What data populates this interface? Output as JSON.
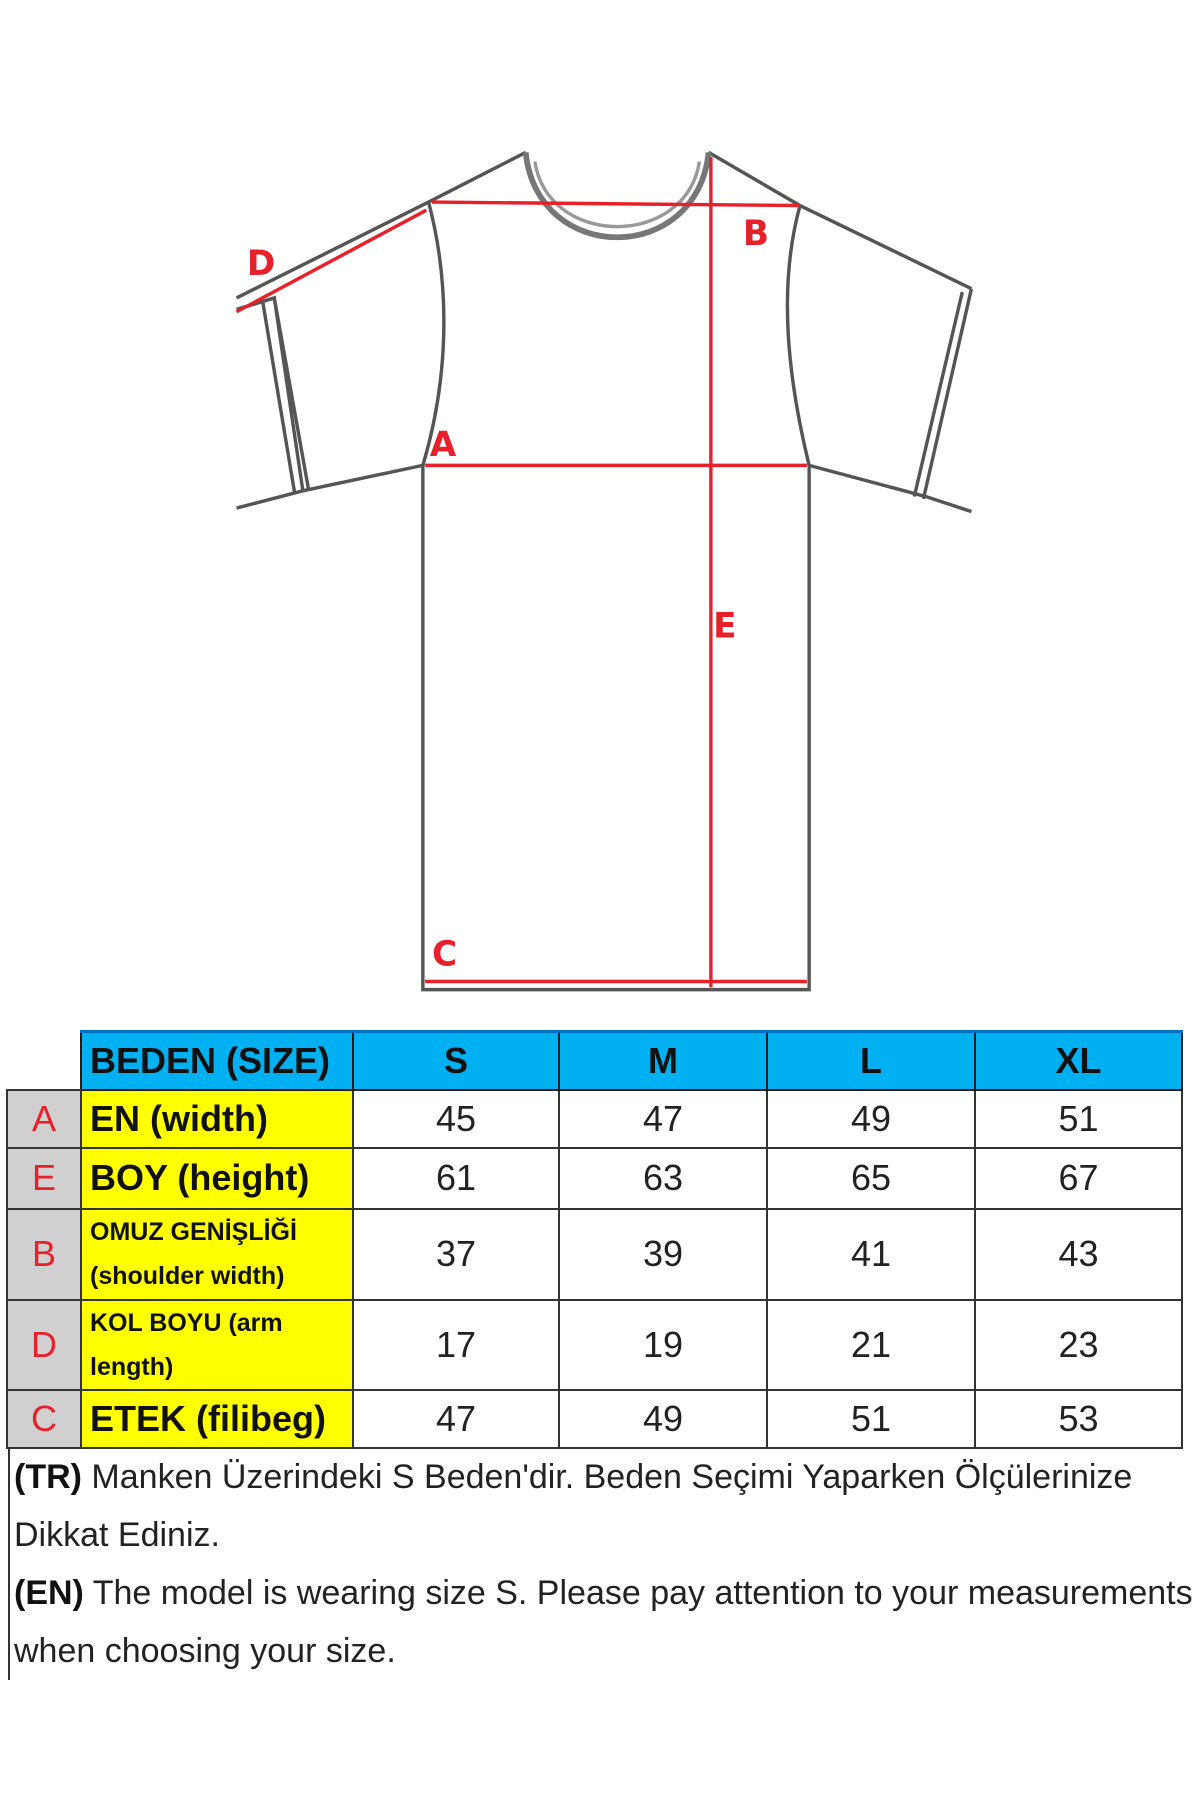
{
  "diagram": {
    "labels": [
      "A",
      "B",
      "C",
      "D",
      "E"
    ],
    "line_color": "#555555",
    "measure_color": "#e8202a"
  },
  "table": {
    "header": {
      "label": "BEDEN (SIZE)",
      "sizes": [
        "S",
        "M",
        "L",
        "XL"
      ]
    },
    "rows": [
      {
        "letter": "A",
        "label": "EN  (width)",
        "values": [
          "45",
          "47",
          "49",
          "51"
        ]
      },
      {
        "letter": "E",
        "label": "BOY (height)",
        "values": [
          "61",
          "63",
          "65",
          "67"
        ]
      },
      {
        "letter": "B",
        "label": "OMUZ GENİŞLİĞİ (shoulder width)",
        "values": [
          "37",
          "39",
          "41",
          "43"
        ]
      },
      {
        "letter": "D",
        "label": "KOL BOYU (arm length)",
        "values": [
          "17",
          "19",
          "21",
          "23"
        ]
      },
      {
        "letter": "C",
        "label": "ETEK (filibeg)",
        "values": [
          "47",
          "49",
          "51",
          "53"
        ]
      }
    ],
    "colors": {
      "header": "#00b0f0",
      "label_bg": "#ffff00",
      "letter_bg": "#d0d0d0",
      "letter_text": "#e8202a"
    }
  },
  "notes": {
    "tr_tag": "(TR)",
    "tr_text": "Manken Üzerindeki S Beden'dir. Beden Seçimi Yaparken Ölçülerinize Dikkat Ediniz.",
    "en_tag": "(EN)",
    "en_text": "The model is wearing size S. Please pay attention to your measurements when choosing your size."
  }
}
